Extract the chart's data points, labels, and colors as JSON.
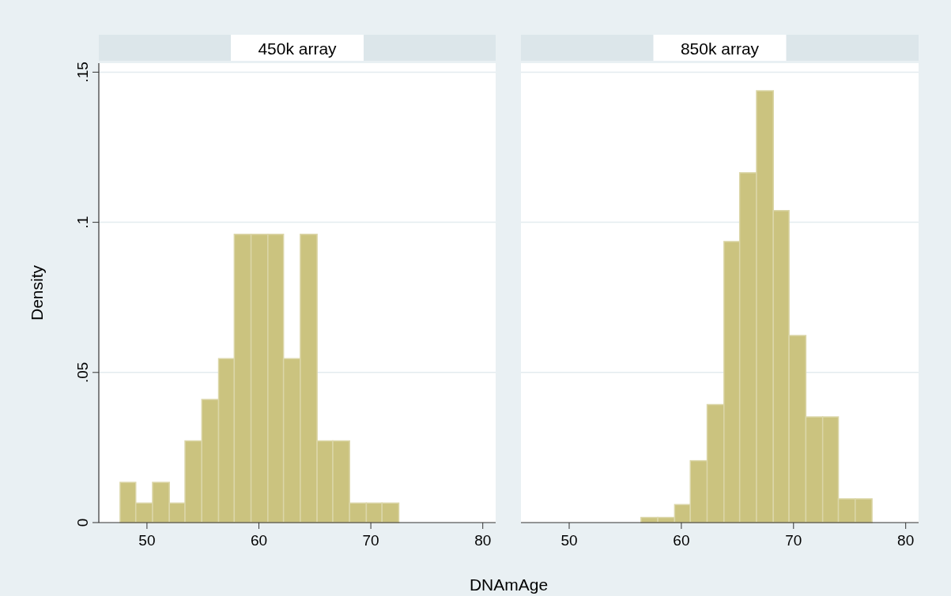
{
  "chart_data": [
    {
      "type": "histogram",
      "title": "450k array",
      "ylabel": "Density",
      "xlabel": "DNAmAge",
      "color": "#cbc37f",
      "grid": "y",
      "bins": [
        47.6,
        49.0,
        50.5,
        52.0,
        53.4,
        54.9,
        56.4,
        57.8,
        59.3,
        60.8,
        62.2,
        63.7,
        65.2,
        66.6,
        68.1,
        69.6,
        71.0,
        72.5
      ],
      "values": [
        0.0134,
        0.0065,
        0.0134,
        0.0065,
        0.0272,
        0.041,
        0.0546,
        0.096,
        0.096,
        0.096,
        0.0546,
        0.096,
        0.0272,
        0.0272,
        0.0065,
        0.0065,
        0.0065
      ],
      "xlim": [
        45.7,
        81.15
      ],
      "ylim": [
        0,
        0.153
      ],
      "xticks": [
        50,
        60,
        70,
        80
      ],
      "yticks": [
        0,
        {
          "value": 0.05,
          "label": ".05"
        },
        {
          "value": 0.1,
          "label": ".1"
        },
        {
          "value": 0.15,
          "label": ".15"
        }
      ]
    },
    {
      "type": "histogram",
      "title": "850k array",
      "color": "#cbc37f",
      "grid": "y",
      "tick_labels": "x",
      "bins": [
        56.4,
        57.9,
        59.4,
        60.8,
        62.3,
        63.8,
        65.2,
        66.7,
        68.2,
        69.6,
        71.1,
        72.6,
        74.0,
        75.5,
        77.0
      ],
      "values": [
        0.0017,
        0.0017,
        0.006,
        0.0206,
        0.0393,
        0.0936,
        0.1165,
        0.1438,
        0.1039,
        0.0623,
        0.0352,
        0.0352,
        0.0079,
        0.0079
      ],
      "xlim": [
        45.7,
        81.15
      ],
      "ylim": [
        0,
        0.153
      ],
      "xticks": [
        50,
        60,
        70,
        80
      ],
      "yticks": [
        {
          "value": 0,
          "label": null
        },
        {
          "value": 0.05,
          "label": null
        },
        {
          "value": 0.1,
          "label": null
        },
        {
          "value": 0.15,
          "label": null
        }
      ]
    }
  ]
}
